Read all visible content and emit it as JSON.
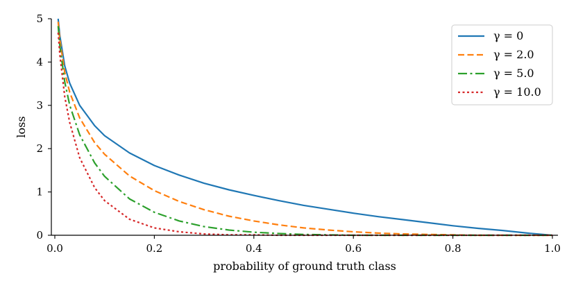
{
  "chart_data": {
    "type": "line",
    "xlabel": "probability of ground truth class",
    "ylabel": "loss",
    "xlim": [
      0.0,
      1.0
    ],
    "ylim": [
      0,
      5
    ],
    "x_ticks": [
      "0.0",
      "0.2",
      "0.4",
      "0.6",
      "0.8",
      "1.0"
    ],
    "y_ticks": [
      "0",
      "1",
      "2",
      "3",
      "4",
      "5"
    ],
    "grid": false,
    "legend_position": "top-right",
    "x": [
      0.0067,
      0.01,
      0.02,
      0.03,
      0.05,
      0.08,
      0.1,
      0.15,
      0.2,
      0.25,
      0.3,
      0.35,
      0.4,
      0.45,
      0.5,
      0.55,
      0.6,
      0.65,
      0.7,
      0.75,
      0.8,
      0.85,
      0.9,
      0.95,
      1.0
    ],
    "series": [
      {
        "name": "γ = 0",
        "color": "#1f77b4",
        "dash": "solid",
        "values": [
          5.0,
          4.61,
          3.91,
          3.51,
          3.0,
          2.53,
          2.3,
          1.9,
          1.61,
          1.39,
          1.2,
          1.05,
          0.92,
          0.8,
          0.69,
          0.6,
          0.51,
          0.43,
          0.36,
          0.29,
          0.22,
          0.16,
          0.11,
          0.05,
          0.0
        ]
      },
      {
        "name": "γ = 2.0",
        "color": "#ff7f0e",
        "dash": "dashed",
        "values": [
          4.93,
          4.52,
          3.76,
          3.3,
          2.71,
          2.14,
          1.87,
          1.37,
          1.03,
          0.78,
          0.59,
          0.44,
          0.33,
          0.24,
          0.17,
          0.12,
          0.08,
          0.05,
          0.03,
          0.02,
          0.01,
          0.0,
          0.0,
          0.0,
          0.0
        ]
      },
      {
        "name": "γ = 5.0",
        "color": "#2ca02c",
        "dash": "dashdot",
        "values": [
          4.83,
          4.38,
          3.54,
          3.0,
          2.32,
          1.67,
          1.36,
          0.84,
          0.53,
          0.33,
          0.2,
          0.12,
          0.07,
          0.04,
          0.02,
          0.01,
          0.0,
          0.0,
          0.0,
          0.0,
          0.0,
          0.0,
          0.0,
          0.0,
          0.0
        ]
      },
      {
        "name": "γ = 10.0",
        "color": "#d62728",
        "dash": "dotted",
        "values": [
          4.68,
          4.17,
          3.2,
          2.6,
          1.79,
          1.1,
          0.8,
          0.37,
          0.17,
          0.08,
          0.03,
          0.01,
          0.01,
          0.0,
          0.0,
          0.0,
          0.0,
          0.0,
          0.0,
          0.0,
          0.0,
          0.0,
          0.0,
          0.0,
          0.0
        ]
      }
    ]
  }
}
